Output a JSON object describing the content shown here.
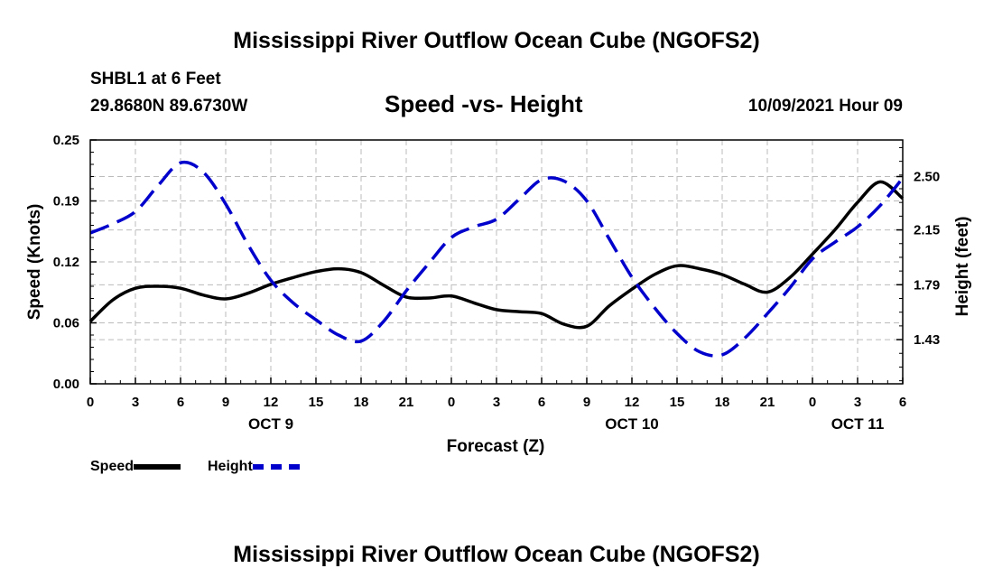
{
  "title_top": "Mississippi River Outflow Ocean Cube (NGOFS2)",
  "title_bottom": "Mississippi River Outflow Ocean Cube (NGOFS2)",
  "station": "SHBL1 at 6 Feet",
  "coords": "29.8680N  89.6730W",
  "subtitle": "Speed -vs- Height",
  "datetime": "10/09/2021 Hour 09",
  "colors": {
    "speed": "#000000",
    "height": "#0000cc",
    "grid": "#bbbbbb"
  },
  "chart_data": {
    "type": "line",
    "title": "Speed -vs- Height",
    "xlabel": "Forecast (Z)",
    "ylabel": "Speed (Knots)",
    "y2label": "Height (feet)",
    "x_ticks": [
      "0",
      "3",
      "6",
      "9",
      "12",
      "15",
      "18",
      "21",
      "0",
      "3",
      "6",
      "9",
      "12",
      "15",
      "18",
      "21",
      "0",
      "3",
      "6"
    ],
    "day_labels": [
      {
        "label": "OCT 9",
        "at_hour": 12
      },
      {
        "label": "OCT 10",
        "at_hour": 36
      },
      {
        "label": "OCT 11",
        "at_hour": 60
      }
    ],
    "xlim": [
      0,
      54
    ],
    "ylim": [
      0,
      0.25
    ],
    "y_ticks": [
      "0.00",
      "0.06",
      "0.12",
      "0.19",
      "0.25"
    ],
    "y_tick_values": [
      0,
      0.0625,
      0.125,
      0.1875,
      0.25
    ],
    "y2lim": [
      1.14,
      2.74
    ],
    "y2_ticks": [
      "1.43",
      "1.79",
      "2.15",
      "2.50"
    ],
    "y2_tick_values": [
      1.43,
      1.79,
      2.15,
      2.5
    ],
    "series": [
      {
        "name": "Speed",
        "axis": "left",
        "x": [
          0,
          1.5,
          3,
          4.5,
          6,
          7.5,
          9,
          10.5,
          12,
          13.5,
          15,
          16.5,
          18,
          19.5,
          21,
          22.5,
          24,
          25.5,
          27,
          28.5,
          30,
          31.5,
          33,
          34.5,
          36,
          37.5,
          39,
          40.5,
          42,
          43.5,
          45,
          46.5,
          48,
          49.5,
          51,
          52.5,
          54
        ],
        "values": [
          0.064,
          0.086,
          0.098,
          0.1,
          0.098,
          0.091,
          0.087,
          0.093,
          0.102,
          0.109,
          0.115,
          0.118,
          0.114,
          0.101,
          0.089,
          0.088,
          0.09,
          0.083,
          0.076,
          0.074,
          0.072,
          0.061,
          0.059,
          0.08,
          0.097,
          0.112,
          0.121,
          0.118,
          0.112,
          0.102,
          0.094,
          0.109,
          0.133,
          0.158,
          0.186,
          0.207,
          0.19
        ]
      },
      {
        "name": "Height",
        "axis": "right",
        "x": [
          0,
          1.5,
          3,
          4.5,
          6,
          7.5,
          9,
          10.5,
          12,
          13.5,
          15,
          16.5,
          18,
          19.5,
          21,
          22.5,
          24,
          25.5,
          27,
          28.5,
          30,
          31.5,
          33,
          34.5,
          36,
          37.5,
          39,
          40.5,
          42,
          43.5,
          45,
          46.5,
          48,
          49.5,
          51,
          52.5,
          54
        ],
        "values": [
          2.13,
          2.19,
          2.27,
          2.44,
          2.59,
          2.53,
          2.32,
          2.05,
          1.82,
          1.67,
          1.56,
          1.46,
          1.42,
          1.55,
          1.75,
          1.93,
          2.1,
          2.17,
          2.22,
          2.35,
          2.48,
          2.47,
          2.34,
          2.09,
          1.84,
          1.64,
          1.47,
          1.35,
          1.33,
          1.44,
          1.6,
          1.77,
          1.96,
          2.07,
          2.17,
          2.31,
          2.49
        ]
      }
    ]
  },
  "legend": {
    "speed": "Speed",
    "height": "Height"
  }
}
